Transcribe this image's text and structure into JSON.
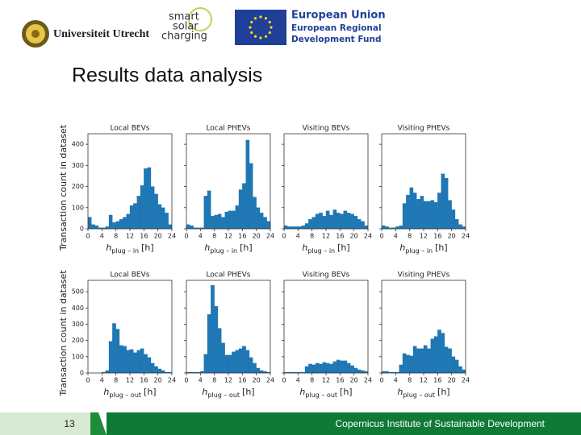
{
  "header": {
    "university": "Universiteit Utrecht",
    "project": [
      "smart",
      "solar",
      "charging"
    ],
    "eu_title": "European Union",
    "eu_sub": [
      "European Regional",
      "Development Fund"
    ]
  },
  "title": "Results data analysis",
  "footer": {
    "page": "13",
    "institute": "Copernicus Institute of Sustainable Development"
  },
  "chart_data": [
    {
      "type": "histogram",
      "title": "Local BEVs",
      "ylabel": "Transaction count in dataset",
      "xlabel": {
        "symbol": "h",
        "subscript": "plug – in",
        "unit": "[h]"
      },
      "color": "#1f77b4",
      "bins": [
        0,
        1,
        2,
        3,
        4,
        5,
        6,
        7,
        8,
        9,
        10,
        11,
        12,
        13,
        14,
        15,
        16,
        17,
        18,
        19,
        20,
        21,
        22,
        23,
        24
      ],
      "counts": [
        55,
        20,
        15,
        5,
        5,
        10,
        65,
        30,
        35,
        45,
        55,
        70,
        110,
        120,
        155,
        205,
        285,
        290,
        200,
        165,
        115,
        100,
        75,
        20
      ],
      "xlim": [
        0,
        24
      ],
      "xticks": [
        0,
        4,
        8,
        12,
        16,
        20,
        24
      ],
      "ylim": [
        0,
        450
      ],
      "yticks": [
        0,
        100,
        200,
        300,
        400
      ]
    },
    {
      "type": "histogram",
      "title": "Local PHEVs",
      "xlabel": {
        "symbol": "h",
        "subscript": "plug – in",
        "unit": "[h]"
      },
      "color": "#1f77b4",
      "bins": [
        0,
        1,
        2,
        3,
        4,
        5,
        6,
        7,
        8,
        9,
        10,
        11,
        12,
        13,
        14,
        15,
        16,
        17,
        18,
        19,
        20,
        21,
        22,
        23,
        24
      ],
      "counts": [
        20,
        15,
        5,
        5,
        5,
        155,
        180,
        60,
        65,
        70,
        55,
        80,
        85,
        85,
        110,
        185,
        215,
        420,
        310,
        150,
        100,
        75,
        55,
        35
      ],
      "xlim": [
        0,
        24
      ],
      "xticks": [
        0,
        4,
        8,
        12,
        16,
        20,
        24
      ],
      "ylim": [
        0,
        450
      ],
      "yticks": [
        0,
        100,
        200,
        300,
        400
      ]
    },
    {
      "type": "histogram",
      "title": "Visiting BEVs",
      "xlabel": {
        "symbol": "h",
        "subscript": "plug – in",
        "unit": "[h]"
      },
      "color": "#1f77b4",
      "bins": [
        0,
        1,
        2,
        3,
        4,
        5,
        6,
        7,
        8,
        9,
        10,
        11,
        12,
        13,
        14,
        15,
        16,
        17,
        18,
        19,
        20,
        21,
        22,
        23,
        24
      ],
      "counts": [
        15,
        10,
        10,
        10,
        10,
        15,
        25,
        45,
        55,
        70,
        75,
        60,
        85,
        65,
        90,
        75,
        70,
        85,
        75,
        70,
        60,
        45,
        35,
        15
      ],
      "xlim": [
        0,
        24
      ],
      "xticks": [
        0,
        4,
        8,
        12,
        16,
        20,
        24
      ],
      "ylim": [
        0,
        450
      ],
      "yticks": [
        0,
        100,
        200,
        300,
        400
      ]
    },
    {
      "type": "histogram",
      "title": "Visiting PHEVs",
      "xlabel": {
        "symbol": "h",
        "subscript": "plug – in",
        "unit": "[h]"
      },
      "color": "#1f77b4",
      "bins": [
        0,
        1,
        2,
        3,
        4,
        5,
        6,
        7,
        8,
        9,
        10,
        11,
        12,
        13,
        14,
        15,
        16,
        17,
        18,
        19,
        20,
        21,
        22,
        23,
        24
      ],
      "counts": [
        15,
        10,
        5,
        5,
        10,
        15,
        120,
        160,
        195,
        170,
        140,
        155,
        130,
        130,
        135,
        125,
        170,
        260,
        240,
        135,
        90,
        45,
        20,
        10
      ],
      "xlim": [
        0,
        24
      ],
      "xticks": [
        0,
        4,
        8,
        12,
        16,
        20,
        24
      ],
      "ylim": [
        0,
        450
      ],
      "yticks": [
        0,
        100,
        200,
        300,
        400
      ]
    },
    {
      "type": "histogram",
      "title": "Local BEVs",
      "ylabel": "Transaction count in dataset",
      "xlabel": {
        "symbol": "h",
        "subscript": "plug – out",
        "unit": "[h]"
      },
      "color": "#1f77b4",
      "bins": [
        0,
        1,
        2,
        3,
        4,
        5,
        6,
        7,
        8,
        9,
        10,
        11,
        12,
        13,
        14,
        15,
        16,
        17,
        18,
        19,
        20,
        21,
        22,
        23,
        24
      ],
      "counts": [
        0,
        0,
        0,
        0,
        5,
        15,
        195,
        305,
        270,
        170,
        165,
        140,
        145,
        125,
        140,
        150,
        115,
        95,
        60,
        40,
        25,
        15,
        5,
        5
      ],
      "xlim": [
        0,
        24
      ],
      "xticks": [
        0,
        4,
        8,
        12,
        16,
        20,
        24
      ],
      "ylim": [
        0,
        570
      ],
      "yticks": [
        0,
        100,
        200,
        300,
        400,
        500
      ]
    },
    {
      "type": "histogram",
      "title": "Local PHEVs",
      "xlabel": {
        "symbol": "h",
        "subscript": "plug – out",
        "unit": "[h]"
      },
      "color": "#1f77b4",
      "bins": [
        0,
        1,
        2,
        3,
        4,
        5,
        6,
        7,
        8,
        9,
        10,
        11,
        12,
        13,
        14,
        15,
        16,
        17,
        18,
        19,
        20,
        21,
        22,
        23,
        24
      ],
      "counts": [
        5,
        5,
        5,
        5,
        10,
        115,
        360,
        540,
        410,
        275,
        185,
        110,
        110,
        130,
        140,
        150,
        165,
        140,
        95,
        60,
        30,
        15,
        10,
        5
      ],
      "xlim": [
        0,
        24
      ],
      "xticks": [
        0,
        4,
        8,
        12,
        16,
        20,
        24
      ],
      "ylim": [
        0,
        570
      ],
      "yticks": [
        0,
        100,
        200,
        300,
        400,
        500
      ]
    },
    {
      "type": "histogram",
      "title": "Visiting BEVs",
      "xlabel": {
        "symbol": "h",
        "subscript": "plug – out",
        "unit": "[h]"
      },
      "color": "#1f77b4",
      "bins": [
        0,
        1,
        2,
        3,
        4,
        5,
        6,
        7,
        8,
        9,
        10,
        11,
        12,
        13,
        14,
        15,
        16,
        17,
        18,
        19,
        20,
        21,
        22,
        23,
        24
      ],
      "counts": [
        5,
        5,
        5,
        5,
        5,
        5,
        40,
        55,
        50,
        60,
        55,
        65,
        60,
        55,
        70,
        80,
        75,
        75,
        60,
        45,
        30,
        20,
        15,
        10
      ],
      "xlim": [
        0,
        24
      ],
      "xticks": [
        0,
        4,
        8,
        12,
        16,
        20,
        24
      ],
      "ylim": [
        0,
        570
      ],
      "yticks": [
        0,
        100,
        200,
        300,
        400,
        500
      ]
    },
    {
      "type": "histogram",
      "title": "Visiting PHEVs",
      "xlabel": {
        "symbol": "h",
        "subscript": "plug – out",
        "unit": "[h]"
      },
      "color": "#1f77b4",
      "bins": [
        0,
        1,
        2,
        3,
        4,
        5,
        6,
        7,
        8,
        9,
        10,
        11,
        12,
        13,
        14,
        15,
        16,
        17,
        18,
        19,
        20,
        21,
        22,
        23,
        24
      ],
      "counts": [
        10,
        10,
        5,
        5,
        5,
        50,
        120,
        110,
        105,
        165,
        150,
        150,
        170,
        150,
        210,
        225,
        265,
        245,
        160,
        150,
        100,
        80,
        40,
        20
      ],
      "xlim": [
        0,
        24
      ],
      "xticks": [
        0,
        4,
        8,
        12,
        16,
        20,
        24
      ],
      "ylim": [
        0,
        570
      ],
      "yticks": [
        0,
        100,
        200,
        300,
        400,
        500
      ]
    }
  ]
}
